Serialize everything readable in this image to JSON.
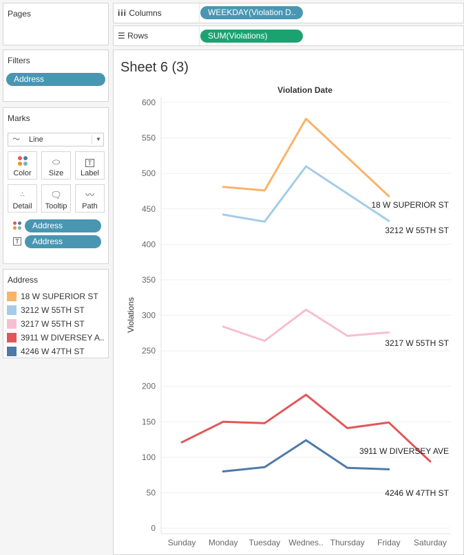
{
  "pages": {
    "title": "Pages"
  },
  "columns": {
    "label": "Columns",
    "pill": "WEEKDAY(Violation D.."
  },
  "rows": {
    "label": "Rows",
    "pill": "SUM(Violations)"
  },
  "filters": {
    "title": "Filters",
    "pill": "Address"
  },
  "marks": {
    "title": "Marks",
    "type": "Line",
    "buttons": [
      "Color",
      "Size",
      "Label",
      "Detail",
      "Tooltip",
      "Path"
    ],
    "fields": [
      "Address",
      "Address"
    ]
  },
  "legend": {
    "title": "Address",
    "items": [
      {
        "label": "18 W SUPERIOR ST",
        "color": "#f9b36b"
      },
      {
        "label": "3212 W 55TH ST",
        "color": "#a3cce9"
      },
      {
        "label": "3217 W 55TH ST",
        "color": "#f7bed1"
      },
      {
        "label": "3911 W DIVERSEY A..",
        "color": "#e15759"
      },
      {
        "label": "4246 W 47TH ST",
        "color": "#4e79a7"
      }
    ]
  },
  "sheet": {
    "title": "Sheet 6 (3)"
  },
  "chart_data": {
    "type": "line",
    "title": "Violation Date",
    "xlabel": "",
    "ylabel": "Violations",
    "categories": [
      "Sunday",
      "Monday",
      "Tuesday",
      "Wednes..",
      "Thursday",
      "Friday",
      "Saturday"
    ],
    "ylim": [
      0,
      600
    ],
    "yticks": [
      0,
      50,
      100,
      150,
      200,
      250,
      300,
      350,
      400,
      450,
      500,
      550,
      600
    ],
    "grid": true,
    "series": [
      {
        "name": "18 W SUPERIOR ST",
        "color": "#f9b36b",
        "values": [
          null,
          481,
          476,
          577,
          null,
          468,
          null
        ]
      },
      {
        "name": "3212 W 55TH ST",
        "color": "#a3cce9",
        "values": [
          null,
          442,
          432,
          510,
          null,
          433,
          null
        ]
      },
      {
        "name": "3217 W 55TH ST",
        "color": "#f7bed1",
        "values": [
          null,
          284,
          264,
          308,
          271,
          276,
          null
        ]
      },
      {
        "name": "3911 W DIVERSEY AVE",
        "color": "#e15759",
        "values": [
          121,
          150,
          148,
          188,
          141,
          149,
          94
        ]
      },
      {
        "name": "4246 W 47TH ST",
        "color": "#4e79a7",
        "values": [
          null,
          80,
          86,
          124,
          85,
          83,
          null
        ]
      }
    ],
    "annotations": [
      "18 W SUPERIOR ST",
      "3212 W 55TH ST",
      "3217 W 55TH ST",
      "3911 W DIVERSEY AVE",
      "4246 W 47TH ST"
    ]
  }
}
